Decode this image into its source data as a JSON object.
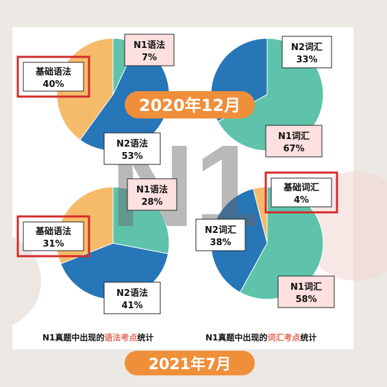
{
  "watermark": "N1",
  "banner_top": "2020年12月",
  "banner_bottom": "2021年7月",
  "footer": {
    "grammar": {
      "prefix": "N1真题中出现的",
      "highlight": "语法考点",
      "suffix": "统计"
    },
    "vocab": {
      "prefix": "N1真题中出现的",
      "highlight": "词汇考点",
      "suffix": "统计"
    }
  },
  "colors": {
    "orange": "#f6bb6a",
    "blue": "#2676b8",
    "teal": "#5ec3aa",
    "highlight_red": "#d42a2a",
    "banner": "#ef8f3a",
    "pink_box": "#fde0e0"
  },
  "chart_data": [
    {
      "type": "pie",
      "title": "2020年12月",
      "categories": [
        "基础语法",
        "N2语法",
        "N1语法"
      ],
      "values": [
        40,
        53,
        7
      ],
      "labels": [
        "基础语法\n40%",
        "N2语法\n53%",
        "N1语法\n7%"
      ],
      "highlighted": "基础语法"
    },
    {
      "type": "pie",
      "title": "2020年12月",
      "categories": [
        "N2词汇",
        "N1词汇"
      ],
      "values": [
        33,
        67
      ],
      "labels": [
        "N2词汇\n33%",
        "N1词汇\n67%"
      ]
    },
    {
      "type": "pie",
      "title": "2021年7月",
      "categories": [
        "基础语法",
        "N2语法",
        "N1语法"
      ],
      "values": [
        31,
        41,
        28
      ],
      "labels": [
        "基础语法\n31%",
        "N2语法\n41%",
        "N1语法\n28%"
      ],
      "highlighted": "基础语法"
    },
    {
      "type": "pie",
      "title": "2021年7月",
      "categories": [
        "基础词汇",
        "N2词汇",
        "N1词汇"
      ],
      "values": [
        4,
        38,
        58
      ],
      "labels": [
        "基础词汇\n4%",
        "N2词汇\n38%",
        "N1词汇\n58%"
      ],
      "highlighted": "基础词汇"
    }
  ]
}
